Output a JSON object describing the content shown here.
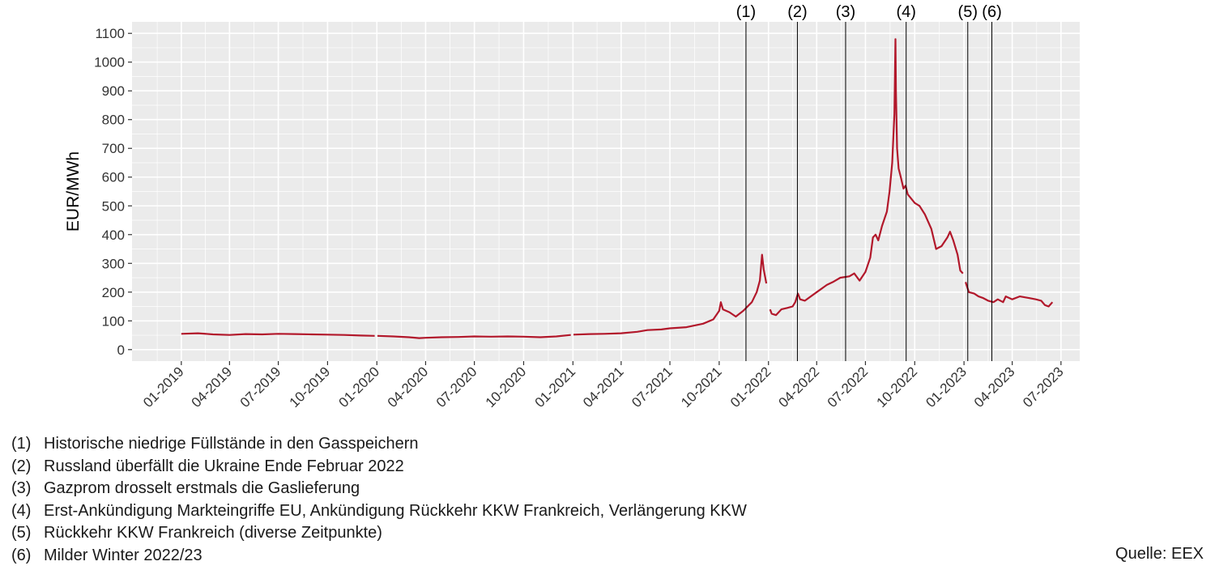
{
  "chart_data": {
    "type": "line",
    "ylabel": "EUR/MWh",
    "xlabel": "",
    "ylim": [
      -40,
      1140
    ],
    "xlim": [
      "2018-10-01",
      "2023-08-05"
    ],
    "yticks": [
      0,
      100,
      200,
      300,
      400,
      500,
      600,
      700,
      800,
      900,
      1000,
      1100
    ],
    "xticks": [
      {
        "date": "2019-01-01",
        "label": "01-2019"
      },
      {
        "date": "2019-04-01",
        "label": "04-2019"
      },
      {
        "date": "2019-07-01",
        "label": "07-2019"
      },
      {
        "date": "2019-10-01",
        "label": "10-2019"
      },
      {
        "date": "2020-01-01",
        "label": "01-2020"
      },
      {
        "date": "2020-04-01",
        "label": "04-2020"
      },
      {
        "date": "2020-07-01",
        "label": "07-2020"
      },
      {
        "date": "2020-10-01",
        "label": "10-2020"
      },
      {
        "date": "2021-01-01",
        "label": "01-2021"
      },
      {
        "date": "2021-04-01",
        "label": "04-2021"
      },
      {
        "date": "2021-07-01",
        "label": "07-2021"
      },
      {
        "date": "2021-10-01",
        "label": "10-2021"
      },
      {
        "date": "2022-01-01",
        "label": "01-2022"
      },
      {
        "date": "2022-04-01",
        "label": "04-2022"
      },
      {
        "date": "2022-07-01",
        "label": "07-2022"
      },
      {
        "date": "2022-10-01",
        "label": "10-2022"
      },
      {
        "date": "2023-01-01",
        "label": "01-2023"
      },
      {
        "date": "2023-04-01",
        "label": "04-2023"
      },
      {
        "date": "2023-07-01",
        "label": "07-2023"
      }
    ],
    "grid": true,
    "colors": {
      "line": "#b2182b",
      "panel": "#ebebeb",
      "grid": "#ffffff",
      "event": "#000000"
    },
    "series": [
      {
        "segments": [
          [
            [
              "2019-01-01",
              55
            ],
            [
              "2019-02-01",
              57
            ],
            [
              "2019-03-01",
              53
            ],
            [
              "2019-04-01",
              51
            ],
            [
              "2019-05-01",
              54
            ],
            [
              "2019-06-01",
              53
            ],
            [
              "2019-07-01",
              55
            ],
            [
              "2019-08-01",
              54
            ],
            [
              "2019-09-01",
              53
            ],
            [
              "2019-10-01",
              52
            ],
            [
              "2019-11-01",
              51
            ],
            [
              "2019-12-01",
              49
            ],
            [
              "2019-12-28",
              48
            ]
          ],
          [
            [
              "2020-01-02",
              48
            ],
            [
              "2020-02-01",
              46
            ],
            [
              "2020-03-01",
              43
            ],
            [
              "2020-03-20",
              40
            ],
            [
              "2020-04-01",
              41
            ],
            [
              "2020-05-01",
              43
            ],
            [
              "2020-06-01",
              44
            ],
            [
              "2020-07-01",
              46
            ],
            [
              "2020-08-01",
              45
            ],
            [
              "2020-09-01",
              46
            ],
            [
              "2020-10-01",
              45
            ],
            [
              "2020-11-01",
              43
            ],
            [
              "2020-12-01",
              46
            ],
            [
              "2020-12-28",
              51
            ]
          ],
          [
            [
              "2021-01-02",
              52
            ],
            [
              "2021-02-01",
              54
            ],
            [
              "2021-03-01",
              55
            ],
            [
              "2021-04-01",
              57
            ],
            [
              "2021-05-01",
              62
            ],
            [
              "2021-05-20",
              68
            ],
            [
              "2021-06-15",
              70
            ],
            [
              "2021-07-01",
              74
            ],
            [
              "2021-08-01",
              78
            ],
            [
              "2021-09-01",
              90
            ],
            [
              "2021-09-20",
              105
            ],
            [
              "2021-10-01",
              135
            ],
            [
              "2021-10-04",
              165
            ],
            [
              "2021-10-08",
              140
            ],
            [
              "2021-10-20",
              130
            ],
            [
              "2021-11-01",
              115
            ],
            [
              "2021-11-15",
              135
            ],
            [
              "2021-12-01",
              165
            ],
            [
              "2021-12-10",
              200
            ],
            [
              "2021-12-16",
              240
            ],
            [
              "2021-12-20",
              330
            ],
            [
              "2021-12-23",
              280
            ],
            [
              "2021-12-28",
              230
            ]
          ],
          [
            [
              "2022-01-04",
              140
            ],
            [
              "2022-01-07",
              125
            ],
            [
              "2022-01-15",
              120
            ],
            [
              "2022-01-25",
              140
            ],
            [
              "2022-02-05",
              145
            ],
            [
              "2022-02-15",
              150
            ],
            [
              "2022-02-20",
              165
            ],
            [
              "2022-02-25",
              195
            ],
            [
              "2022-03-01",
              175
            ],
            [
              "2022-03-10",
              170
            ],
            [
              "2022-04-01",
              200
            ],
            [
              "2022-04-20",
              225
            ],
            [
              "2022-05-01",
              235
            ],
            [
              "2022-05-15",
              250
            ],
            [
              "2022-06-01",
              255
            ],
            [
              "2022-06-10",
              265
            ],
            [
              "2022-06-20",
              240
            ],
            [
              "2022-07-01",
              270
            ],
            [
              "2022-07-10",
              320
            ],
            [
              "2022-07-15",
              390
            ],
            [
              "2022-07-20",
              400
            ],
            [
              "2022-07-25",
              380
            ],
            [
              "2022-08-01",
              430
            ],
            [
              "2022-08-10",
              480
            ],
            [
              "2022-08-15",
              550
            ],
            [
              "2022-08-20",
              650
            ],
            [
              "2022-08-24",
              820
            ],
            [
              "2022-08-26",
              1080
            ],
            [
              "2022-08-27",
              900
            ],
            [
              "2022-08-29",
              700
            ],
            [
              "2022-09-01",
              630
            ],
            [
              "2022-09-05",
              600
            ],
            [
              "2022-09-10",
              560
            ],
            [
              "2022-09-14",
              570
            ],
            [
              "2022-09-18",
              540
            ],
            [
              "2022-10-01",
              510
            ],
            [
              "2022-10-10",
              500
            ],
            [
              "2022-10-20",
              470
            ],
            [
              "2022-11-01",
              420
            ],
            [
              "2022-11-10",
              350
            ],
            [
              "2022-11-20",
              360
            ],
            [
              "2022-12-01",
              390
            ],
            [
              "2022-12-06",
              410
            ],
            [
              "2022-12-12",
              380
            ],
            [
              "2022-12-20",
              330
            ],
            [
              "2022-12-25",
              275
            ],
            [
              "2022-12-30",
              265
            ]
          ],
          [
            [
              "2023-01-04",
              235
            ],
            [
              "2023-01-10",
              200
            ],
            [
              "2023-01-20",
              195
            ],
            [
              "2023-01-28",
              185
            ],
            [
              "2023-02-05",
              180
            ],
            [
              "2023-02-15",
              170
            ],
            [
              "2023-02-25",
              165
            ],
            [
              "2023-03-05",
              175
            ],
            [
              "2023-03-15",
              165
            ],
            [
              "2023-03-20",
              185
            ],
            [
              "2023-04-01",
              175
            ],
            [
              "2023-04-15",
              185
            ],
            [
              "2023-05-01",
              180
            ],
            [
              "2023-05-15",
              175
            ],
            [
              "2023-05-25",
              170
            ],
            [
              "2023-06-01",
              155
            ],
            [
              "2023-06-08",
              150
            ],
            [
              "2023-06-15",
              165
            ]
          ]
        ]
      }
    ],
    "events": [
      {
        "label": "(1)",
        "date": "2021-11-20"
      },
      {
        "label": "(2)",
        "date": "2022-02-24"
      },
      {
        "label": "(3)",
        "date": "2022-05-25"
      },
      {
        "label": "(4)",
        "date": "2022-09-15"
      },
      {
        "label": "(5)",
        "date": "2023-01-08"
      },
      {
        "label": "(6)",
        "date": "2023-02-22"
      }
    ]
  },
  "notes": [
    {
      "num": "(1)",
      "text": "Historische niedrige Füllstände in den Gasspeichern"
    },
    {
      "num": "(2)",
      "text": "Russland überfällt die Ukraine Ende Februar 2022"
    },
    {
      "num": "(3)",
      "text": "Gazprom drosselt erstmals die Gaslieferung"
    },
    {
      "num": "(4)",
      "text": "Erst-Ankündigung Markteingriffe EU, Ankündigung Rückkehr KKW Frankreich, Verlängerung KKW"
    },
    {
      "num": "(5)",
      "text": "Rückkehr KKW Frankreich (diverse Zeitpunkte)"
    },
    {
      "num": "(6)",
      "text": "Milder Winter 2022/23"
    }
  ],
  "source": "Quelle: EEX"
}
